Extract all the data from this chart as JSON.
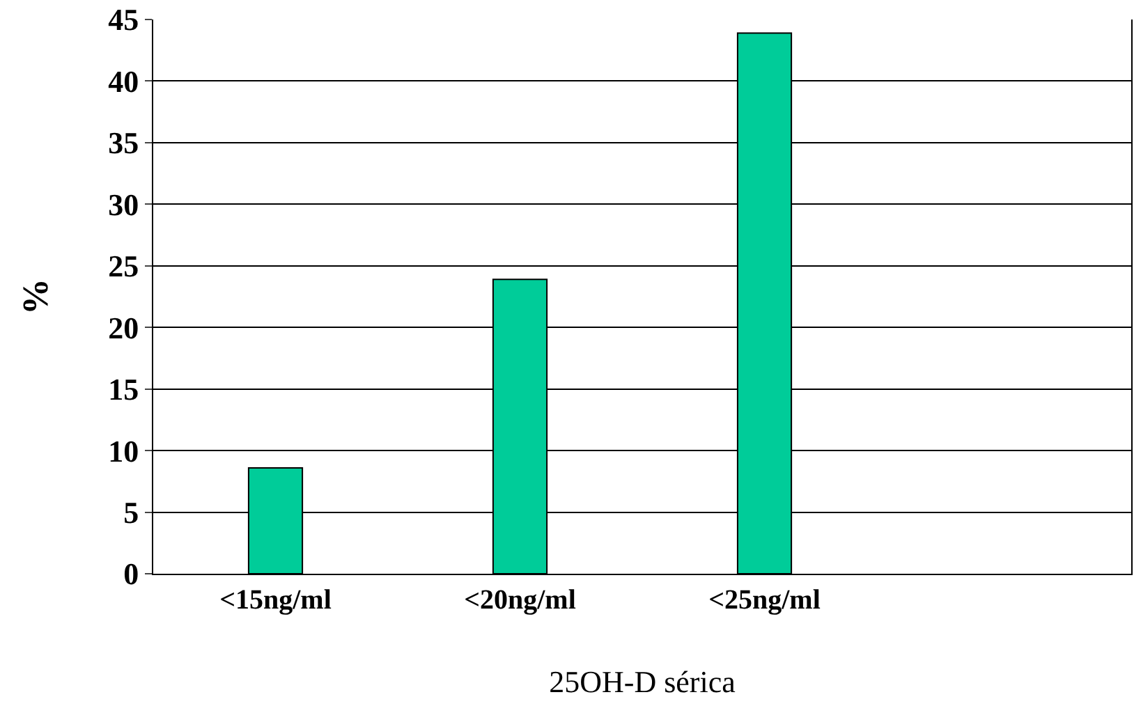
{
  "chart_data": {
    "type": "bar",
    "xlabel": "25OH-D sérica",
    "ylabel": "%",
    "categories": [
      "<15ng/ml",
      "<20ng/ml",
      "<25ng/ml",
      null
    ],
    "values": [
      8.6,
      23.9,
      43.9,
      null
    ],
    "color": "#00cc99",
    "ylim": [
      0,
      45
    ],
    "yticks": [
      0,
      5,
      10,
      15,
      20,
      25,
      30,
      35,
      40,
      45
    ],
    "grid": "y",
    "legend": false
  }
}
